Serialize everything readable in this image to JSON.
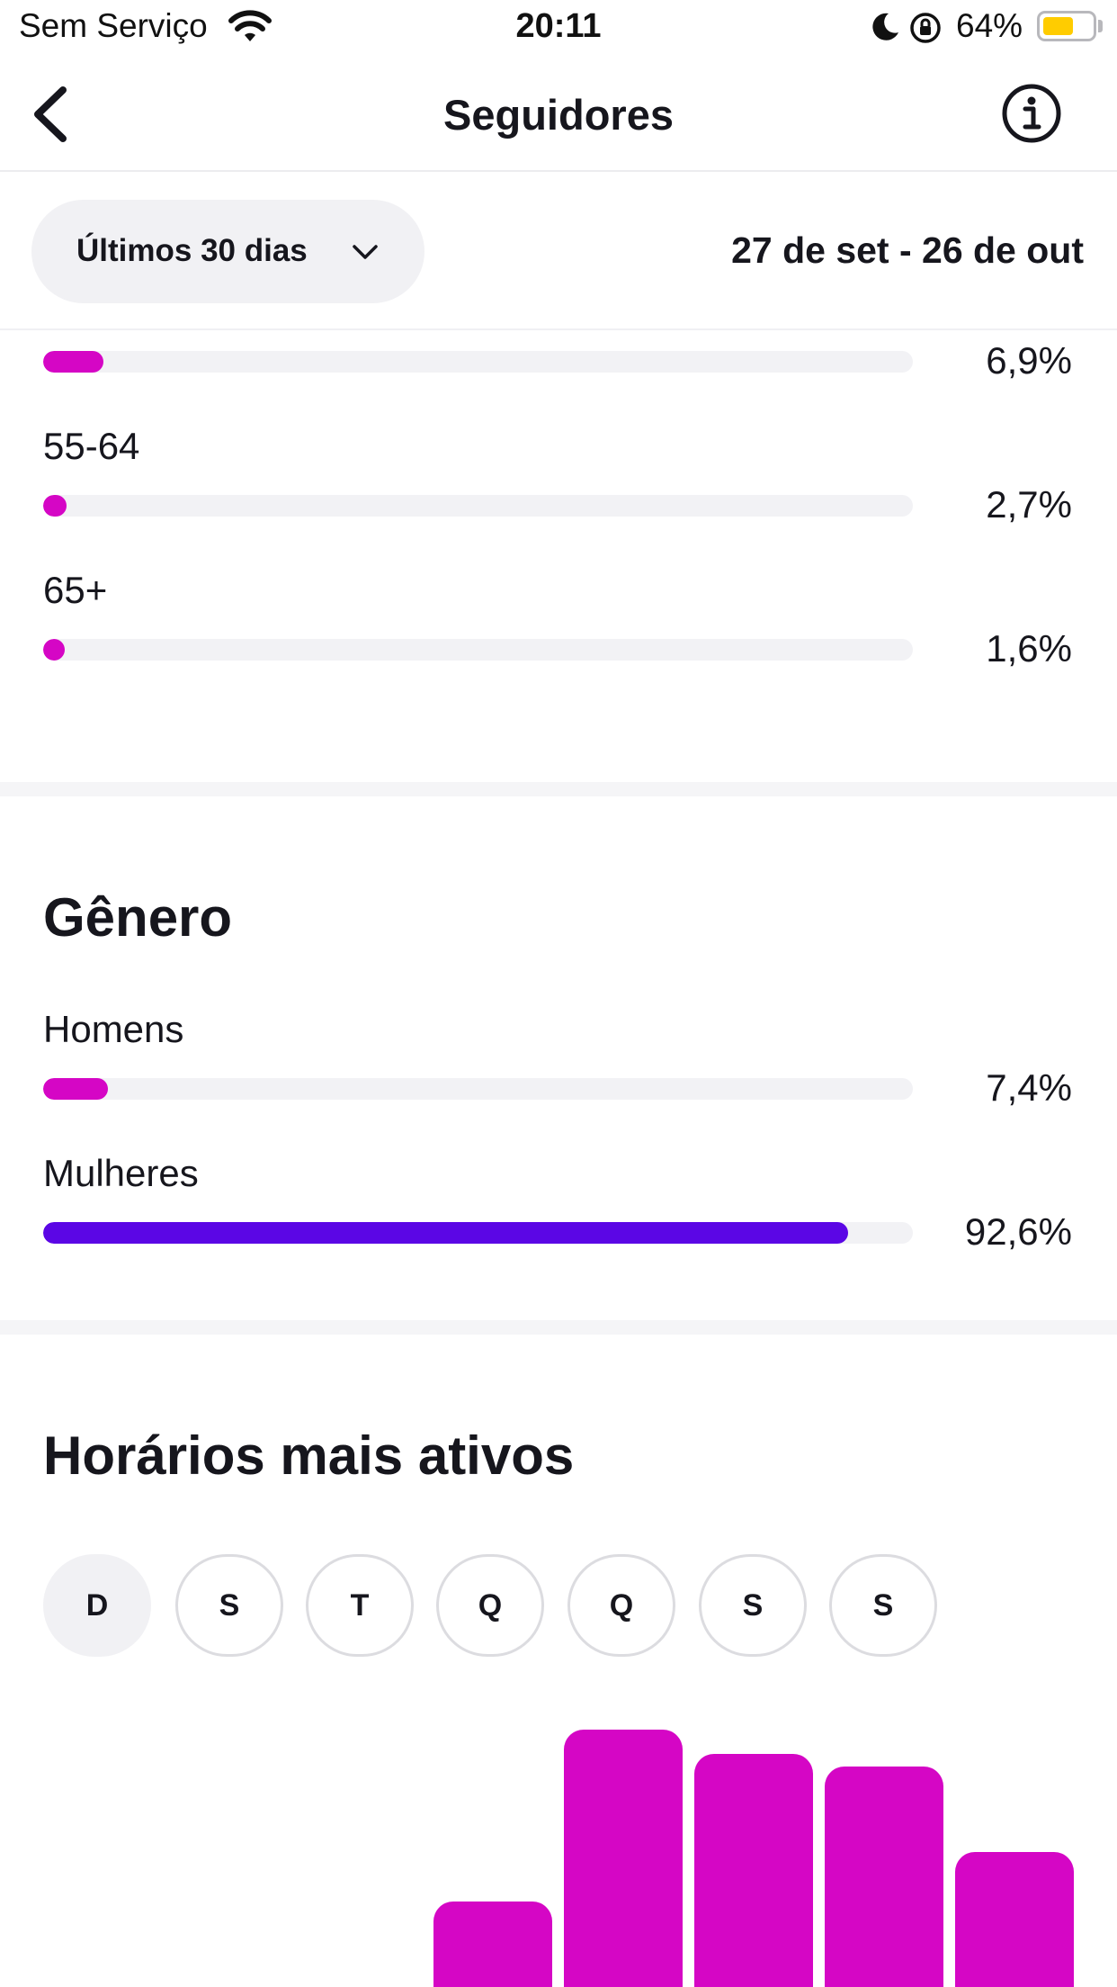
{
  "status_bar": {
    "carrier": "Sem Serviço",
    "time": "20:11",
    "battery_percent": "64%",
    "battery_level": 0.64,
    "battery_color": "#ffcc00"
  },
  "nav": {
    "title": "Seguidores",
    "back_icon": "chevron-left-icon",
    "info_icon": "info-circle-icon"
  },
  "filter": {
    "period_label": "Últimos 30 dias",
    "date_range": "27 de set - 26 de out"
  },
  "age": {
    "rows": [
      {
        "label": "",
        "percent": "6,9%",
        "value": 6.9
      },
      {
        "label": "55-64",
        "percent": "2,7%",
        "value": 2.7
      },
      {
        "label": "65+",
        "percent": "1,6%",
        "value": 1.6
      }
    ]
  },
  "gender": {
    "title": "Gênero",
    "rows": [
      {
        "label": "Homens",
        "percent": "7,4%",
        "value": 7.4
      },
      {
        "label": "Mulheres",
        "percent": "92,6%",
        "value": 92.6
      }
    ]
  },
  "active_times": {
    "title": "Horários mais ativos",
    "days": [
      "D",
      "S",
      "T",
      "Q",
      "Q",
      "S",
      "S"
    ],
    "selected_day_index": 0
  },
  "colors": {
    "accent_magenta": "#d506c5",
    "accent_purple": "#5b06e5",
    "track": "#f2f2f5"
  },
  "chart_data": {
    "type": "bar",
    "categories": [
      "",
      "",
      "",
      "",
      ""
    ],
    "values": [
      0.29,
      0.43,
      0.41,
      0.4,
      0.33
    ],
    "note_value_units": "relative height (fraction of visible max), bars cropped at bottom",
    "color": "#d506c5"
  }
}
